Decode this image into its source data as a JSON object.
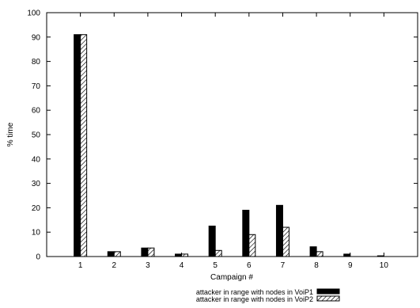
{
  "chart_data": {
    "type": "bar",
    "title": "",
    "xlabel": "Campaign #",
    "ylabel": "% time",
    "categories": [
      "1",
      "2",
      "3",
      "4",
      "5",
      "6",
      "7",
      "8",
      "9",
      "10"
    ],
    "ylim": [
      0,
      100
    ],
    "yticks": [
      0,
      10,
      20,
      30,
      40,
      50,
      60,
      70,
      80,
      90,
      100
    ],
    "legend_position": "bottom-right",
    "series": [
      {
        "name": "attacker in range with nodes in VoiP1",
        "fill": "solid",
        "color": "#000000",
        "values": [
          91,
          2,
          3.5,
          1,
          12.5,
          19,
          21,
          4,
          1,
          0.3
        ]
      },
      {
        "name": "attacker in range with nodes in VoiP2",
        "fill": "hatched",
        "color": "#000000",
        "values": [
          91,
          2,
          3.5,
          1,
          2.5,
          9,
          12,
          2,
          0,
          0
        ]
      }
    ]
  }
}
